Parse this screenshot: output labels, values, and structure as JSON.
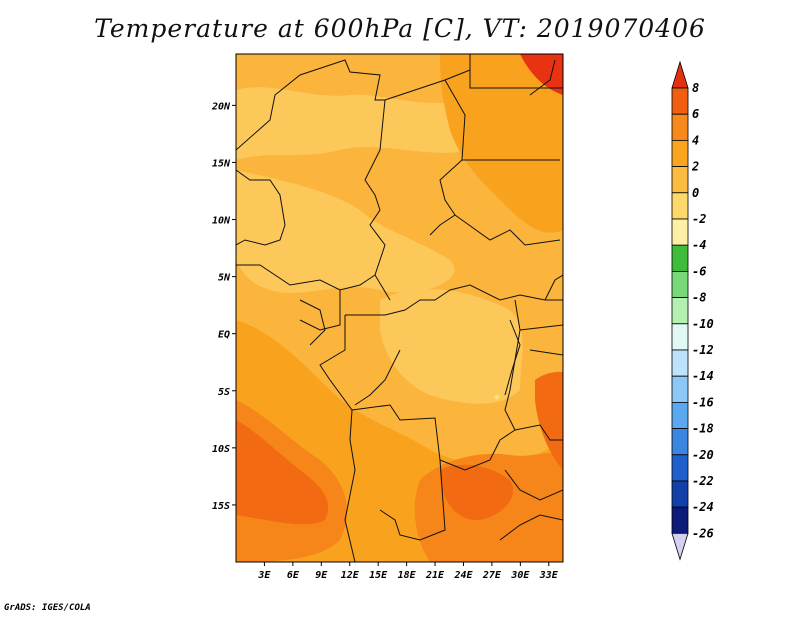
{
  "title": "Temperature at 600hPa [C], VT: 2019070406",
  "credit": "GrADS: IGES/COLA",
  "map": {
    "variable": "Temperature",
    "level": "600hPa",
    "units": "C",
    "valid_time": "2019070406",
    "lon_range": [
      0,
      34.5
    ],
    "lat_range": [
      -20,
      24.5
    ],
    "x_ticks": [
      {
        "lon": 3,
        "label": "3E"
      },
      {
        "lon": 6,
        "label": "6E"
      },
      {
        "lon": 9,
        "label": "9E"
      },
      {
        "lon": 12,
        "label": "12E"
      },
      {
        "lon": 15,
        "label": "15E"
      },
      {
        "lon": 18,
        "label": "18E"
      },
      {
        "lon": 21,
        "label": "21E"
      },
      {
        "lon": 24,
        "label": "24E"
      },
      {
        "lon": 27,
        "label": "27E"
      },
      {
        "lon": 30,
        "label": "30E"
      },
      {
        "lon": 33,
        "label": "33E"
      }
    ],
    "y_ticks": [
      {
        "lat": 20,
        "label": "20N"
      },
      {
        "lat": 15,
        "label": "15N"
      },
      {
        "lat": 10,
        "label": "10N"
      },
      {
        "lat": 5,
        "label": "5N"
      },
      {
        "lat": 0,
        "label": "EQ"
      },
      {
        "lat": -5,
        "label": "5S"
      },
      {
        "lat": -10,
        "label": "10S"
      },
      {
        "lat": -15,
        "label": "15S"
      }
    ],
    "colors": {
      "base": "#fbb43c",
      "light": "#fdc85a",
      "warm": "#f9a21e",
      "warmer": "#f7861a",
      "hot": "#f26a12",
      "hottest": "#e83212",
      "cool_spot": "#fde07a"
    }
  },
  "colorbar": {
    "labels": [
      "8",
      "6",
      "4",
      "2",
      "0",
      "-2",
      "-4",
      "-6",
      "-8",
      "-10",
      "-12",
      "-14",
      "-16",
      "-18",
      "-20",
      "-22",
      "-24",
      "-26"
    ],
    "colors": [
      "#e53010",
      "#f06010",
      "#f7881a",
      "#fba420",
      "#fbbc40",
      "#fdd86a",
      "#fdf0a6",
      "#3fbc3a",
      "#78d978",
      "#b4f0b0",
      "#e2f8f4",
      "#bde2fb",
      "#8cc8f7",
      "#5aa8ef",
      "#3a86e0",
      "#2060cc",
      "#1040a8",
      "#0c1a78",
      "#d4d0f0"
    ]
  }
}
